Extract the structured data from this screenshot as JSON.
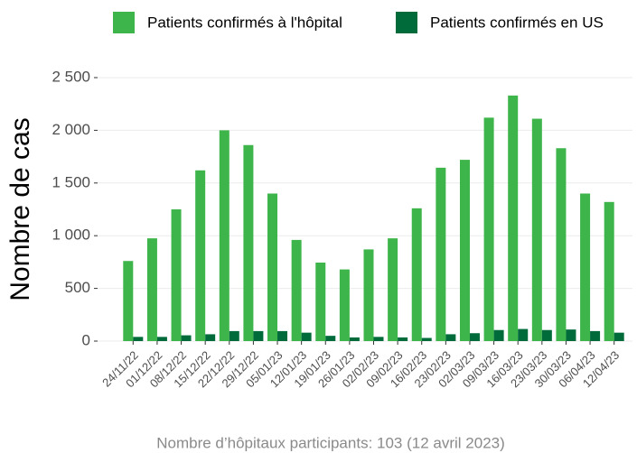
{
  "chart_data": {
    "type": "bar",
    "y_label": "Nombre de cas",
    "caption": "Nombre d’hôpitaux participants: 103 (12 avril 2023)",
    "categories": [
      "24/11/22",
      "01/12/22",
      "08/12/22",
      "15/12/22",
      "22/12/22",
      "29/12/22",
      "05/01/23",
      "12/01/23",
      "19/01/23",
      "26/01/23",
      "02/02/23",
      "09/02/23",
      "16/02/23",
      "23/02/23",
      "02/03/23",
      "09/03/23",
      "16/03/23",
      "23/03/23",
      "30/03/23",
      "06/04/23",
      "12/04/23"
    ],
    "series": [
      {
        "name": "Patients confirmés à l'hôpital",
        "color": "#3db54a",
        "values": [
          760,
          975,
          1250,
          1620,
          2000,
          1860,
          1400,
          960,
          745,
          680,
          870,
          975,
          1260,
          1645,
          1720,
          2120,
          2330,
          2110,
          1830,
          1400,
          1320
        ]
      },
      {
        "name": "Patients confirmés en US",
        "color": "#006b3a",
        "values": [
          40,
          40,
          55,
          65,
          95,
          95,
          95,
          80,
          50,
          35,
          40,
          35,
          30,
          65,
          75,
          105,
          115,
          105,
          110,
          95,
          80
        ]
      }
    ],
    "ylim": [
      0,
      2500
    ],
    "yticks": [
      0,
      500,
      {
        "value": 1000,
        "label": "1 000"
      },
      {
        "value": 1500,
        "label": "1 500"
      },
      {
        "value": 2000,
        "label": "2 000"
      },
      {
        "value": 2500,
        "label": "2 500"
      }
    ],
    "grid": true,
    "legend": "top"
  }
}
